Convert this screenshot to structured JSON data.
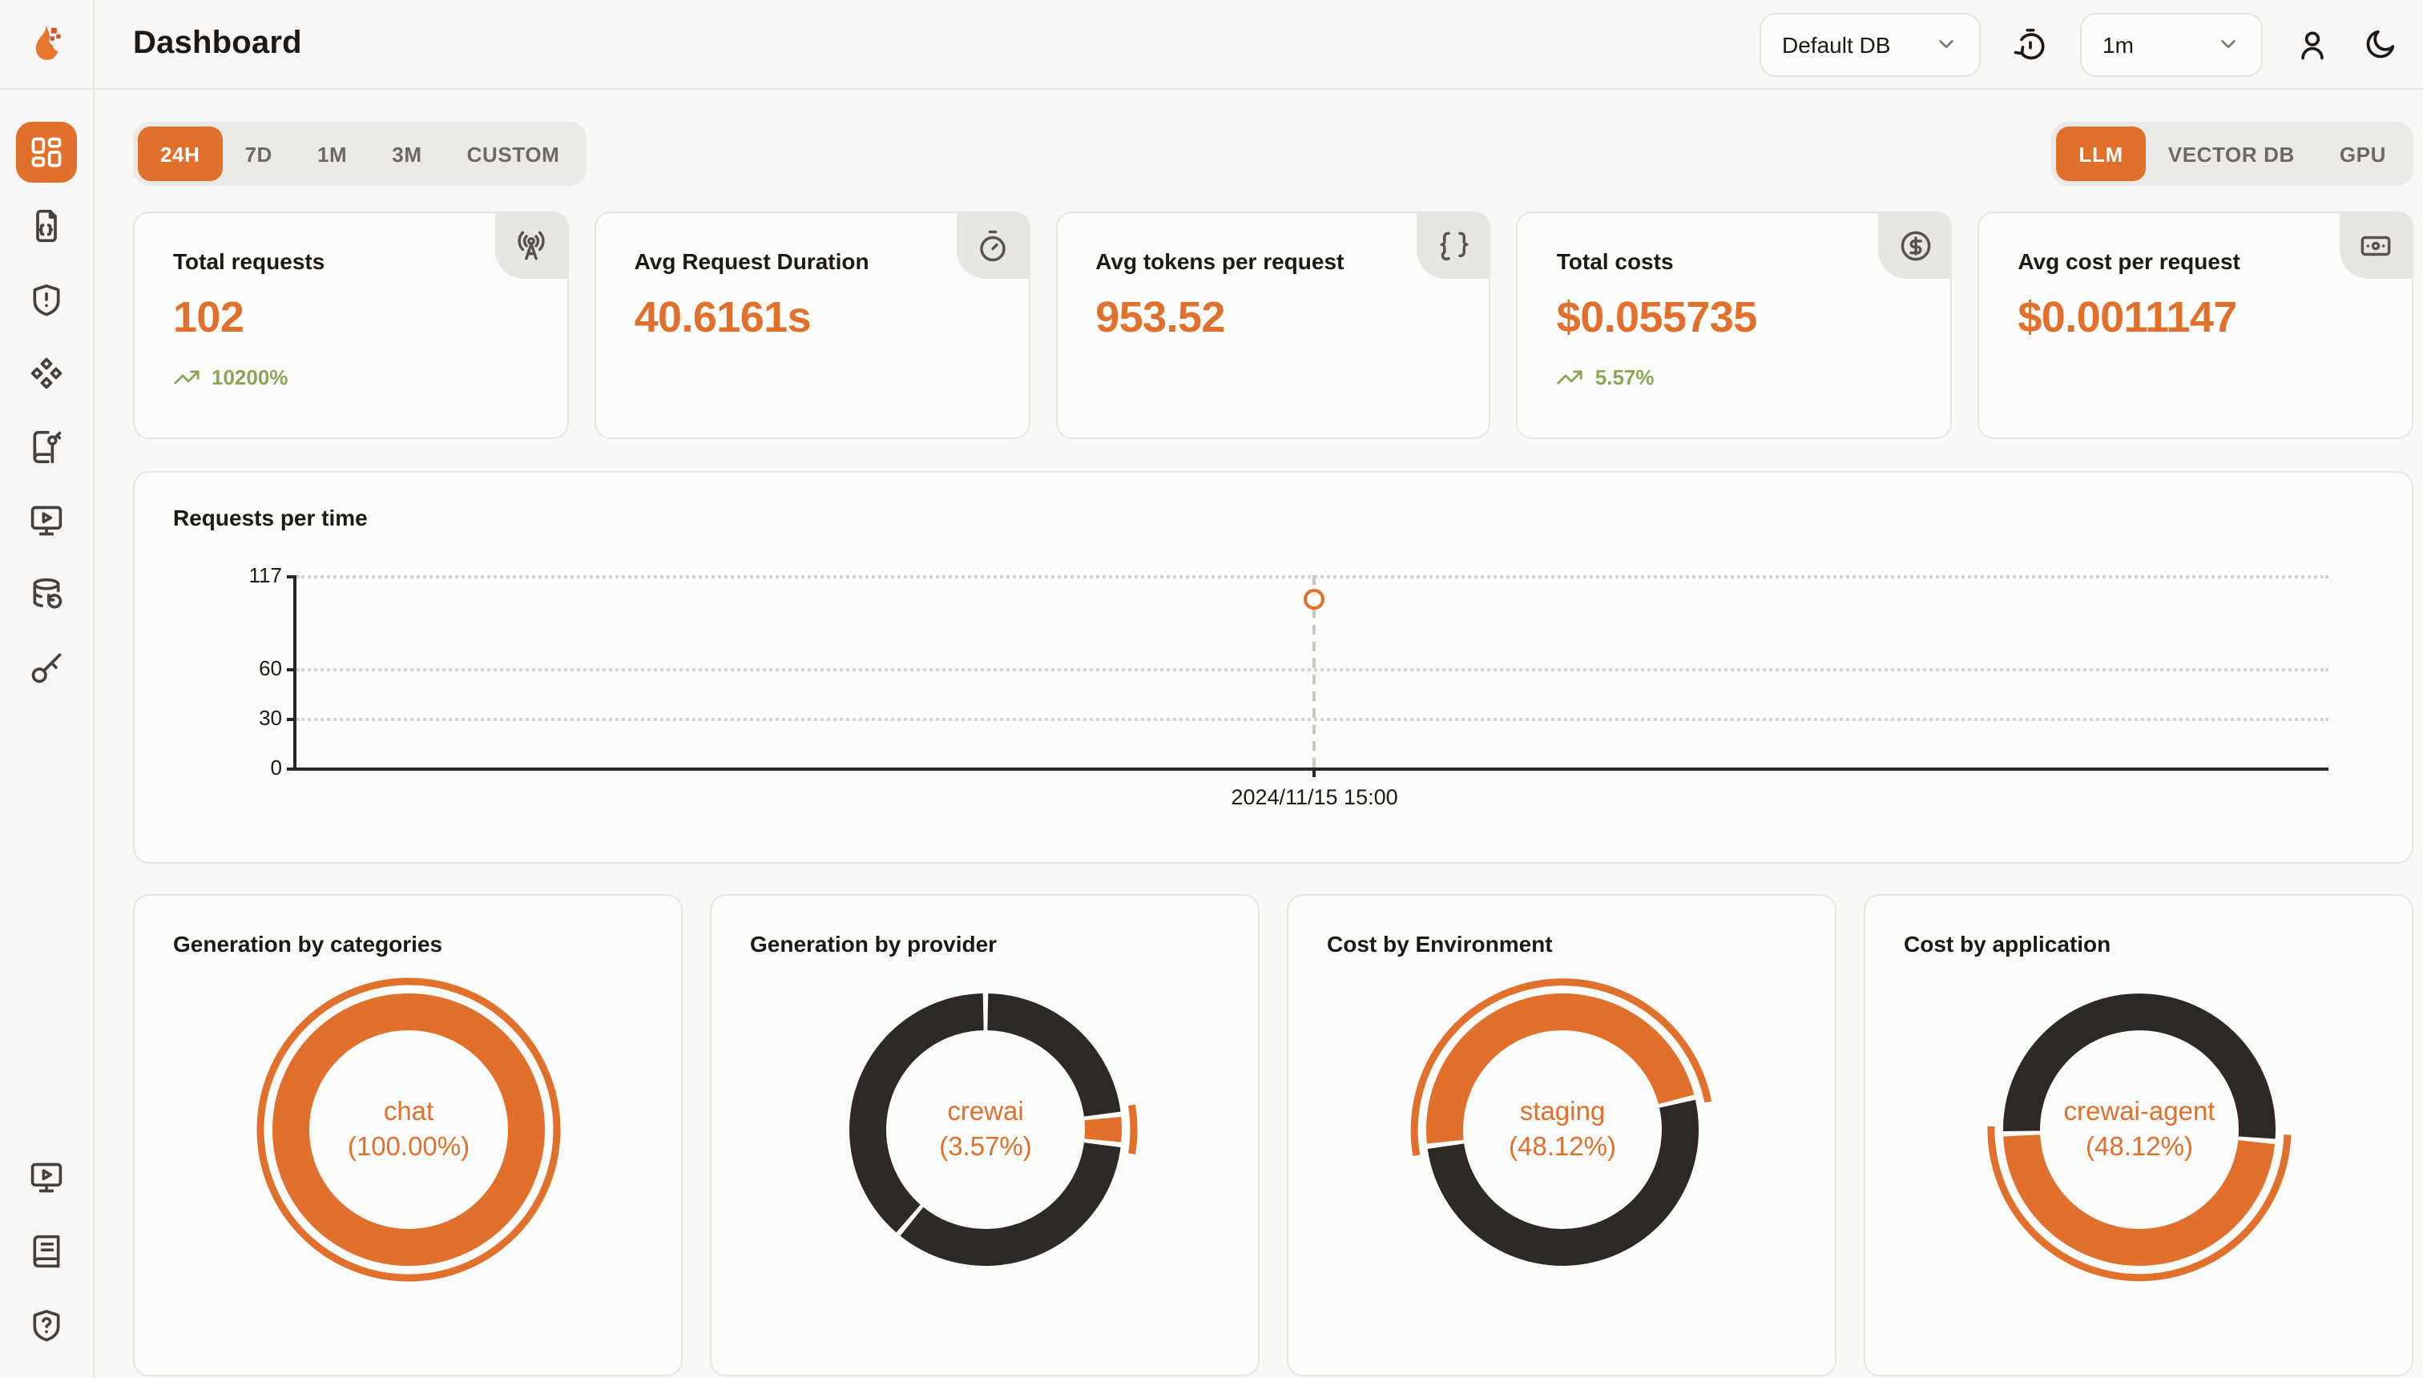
{
  "app": {
    "title": "Dashboard"
  },
  "topbar": {
    "database_select": {
      "value": "Default DB"
    },
    "refresh_interval_select": {
      "value": "1m"
    }
  },
  "sidebar": {
    "top_items": [
      {
        "icon": "layout-dashboard",
        "name": "dashboard",
        "active": true
      },
      {
        "icon": "file-json",
        "name": "requests",
        "active": false
      },
      {
        "icon": "shield-alert",
        "name": "exceptions",
        "active": false
      },
      {
        "icon": "component",
        "name": "prompts",
        "active": false
      },
      {
        "icon": "book-key",
        "name": "vault",
        "active": false
      },
      {
        "icon": "monitor-play",
        "name": "playground",
        "active": false
      },
      {
        "icon": "database-backup",
        "name": "database-config",
        "active": false
      },
      {
        "icon": "key-round",
        "name": "api-keys",
        "active": false
      }
    ],
    "bottom_items": [
      {
        "icon": "monitor-play",
        "name": "getting-started",
        "active": false
      },
      {
        "icon": "book-text",
        "name": "documentation",
        "active": false
      },
      {
        "icon": "shield-question",
        "name": "support",
        "active": false
      }
    ]
  },
  "filters": {
    "time_ranges": [
      "24H",
      "7D",
      "1M",
      "3M",
      "CUSTOM"
    ],
    "active_time_range": "24H",
    "sources": [
      "LLM",
      "VECTOR DB",
      "GPU"
    ],
    "active_source": "LLM"
  },
  "stat_cards": [
    {
      "title": "Total requests",
      "value": "102",
      "trend": "10200%",
      "icon": "radio-tower"
    },
    {
      "title": "Avg Request Duration",
      "value": "40.6161s",
      "trend": "",
      "icon": "timer"
    },
    {
      "title": "Avg tokens per request",
      "value": "953.52",
      "trend": "",
      "icon": "braces"
    },
    {
      "title": "Total costs",
      "value": "$0.055735",
      "trend": "5.57%",
      "icon": "circle-dollar-sign"
    },
    {
      "title": "Avg cost per request",
      "value": "$0.0011147",
      "trend": "",
      "icon": "banknote"
    }
  ],
  "chart_data": [
    {
      "id": "requests-per-time",
      "type": "scatter",
      "title": "Requests per time",
      "x": [
        "2024/11/15 15:00"
      ],
      "series": [
        {
          "name": "Requests",
          "values": [
            102
          ]
        }
      ],
      "ylim": [
        0,
        117
      ],
      "yticks": [
        0,
        30,
        60,
        117
      ],
      "grid": "dotted-horizontal",
      "point_x_fraction": 0.501,
      "marker": "hollow-circle"
    },
    {
      "id": "generation-by-categories",
      "type": "pie",
      "title": "Generation by categories",
      "center_label": {
        "name": "chat",
        "pct": "(100.00%)"
      },
      "rotation_deg": 90,
      "segments": [
        {
          "label": "chat",
          "value": 100.0,
          "highlight": true
        }
      ]
    },
    {
      "id": "generation-by-provider",
      "type": "pie",
      "title": "Generation by provider",
      "center_label": {
        "name": "crewai",
        "pct": "(3.57%)"
      },
      "rotation_deg": 90,
      "segments": [
        {
          "label": "",
          "value": 23.2,
          "highlight": false
        },
        {
          "label": "crewai",
          "value": 3.57,
          "highlight": true
        },
        {
          "label": "",
          "value": 34.3,
          "highlight": false
        },
        {
          "label": "",
          "value": 38.93,
          "highlight": false
        }
      ]
    },
    {
      "id": "cost-by-environment",
      "type": "pie",
      "title": "Cost by Environment",
      "center_label": {
        "name": "staging",
        "pct": "(48.12%)"
      },
      "rotation_deg": 187,
      "segments": [
        {
          "label": "staging",
          "value": 48.12,
          "highlight": true
        },
        {
          "label": "",
          "value": 51.88,
          "highlight": false
        }
      ]
    },
    {
      "id": "cost-by-application",
      "type": "pie",
      "title": "Cost by application",
      "center_label": {
        "name": "crewai-agent",
        "pct": "(48.12%)"
      },
      "rotation_deg": 355,
      "segments": [
        {
          "label": "crewai-agent",
          "value": 48.12,
          "highlight": true
        },
        {
          "label": "",
          "value": 51.88,
          "highlight": false
        }
      ]
    }
  ],
  "colors": {
    "accent_orange": "#e0702c",
    "dark_segment": "#2e2925",
    "trend_green": "#8ca659",
    "grid_dotted": "#d8d5d1",
    "axis_dark": "#292524"
  }
}
